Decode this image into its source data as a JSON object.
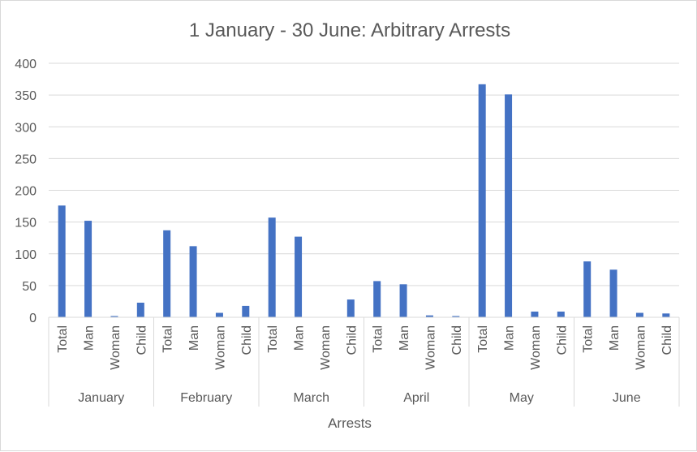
{
  "chart_data": {
    "type": "bar",
    "title": "1 January - 30 June: Arbitrary Arrests",
    "xlabel": "Arrests",
    "ylabel": "",
    "ylim": [
      0,
      400
    ],
    "yticks": [
      "0",
      "50",
      "100",
      "150",
      "200",
      "250",
      "300",
      "350",
      "400"
    ],
    "grid": true,
    "legend": "none",
    "color": "#4472c4",
    "subcategories": [
      "Total",
      "Man",
      "Woman",
      "Child"
    ],
    "groups": [
      {
        "name": "January",
        "values": [
          176,
          152,
          2,
          23
        ]
      },
      {
        "name": "February",
        "values": [
          137,
          112,
          7,
          18
        ]
      },
      {
        "name": "March",
        "values": [
          157,
          127,
          0,
          28
        ]
      },
      {
        "name": "April",
        "values": [
          57,
          52,
          3,
          2
        ]
      },
      {
        "name": "May",
        "values": [
          367,
          351,
          9,
          9
        ]
      },
      {
        "name": "June",
        "values": [
          88,
          75,
          7,
          6
        ]
      }
    ]
  }
}
